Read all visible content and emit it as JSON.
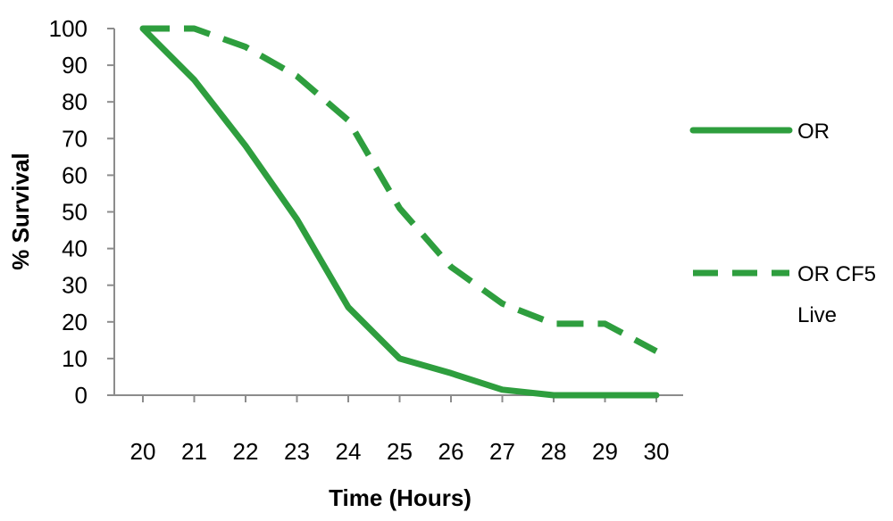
{
  "chart_data": {
    "type": "line",
    "title": "",
    "xlabel": "Time (Hours)",
    "ylabel": "% Survival",
    "x": [
      20,
      21,
      22,
      23,
      24,
      25,
      26,
      27,
      28,
      29,
      30
    ],
    "xlim": [
      20,
      30
    ],
    "ylim": [
      0,
      100
    ],
    "y_ticks": [
      0,
      10,
      20,
      30,
      40,
      50,
      60,
      70,
      80,
      90,
      100
    ],
    "grid": false,
    "legend_position": "right",
    "series": [
      {
        "name": "OR",
        "legend_lines": [
          "OR"
        ],
        "style": "solid",
        "color": "#2e9e3e",
        "values": [
          100,
          86,
          68,
          48,
          24,
          10,
          6,
          1.5,
          0,
          0,
          0
        ]
      },
      {
        "name": "OR CF5 Live",
        "legend_lines": [
          "OR CF5",
          "Live"
        ],
        "style": "dashed",
        "color": "#2e9e3e",
        "values": [
          100,
          100,
          95,
          87,
          75,
          51,
          35,
          25,
          19.5,
          19.5,
          12
        ]
      }
    ]
  }
}
